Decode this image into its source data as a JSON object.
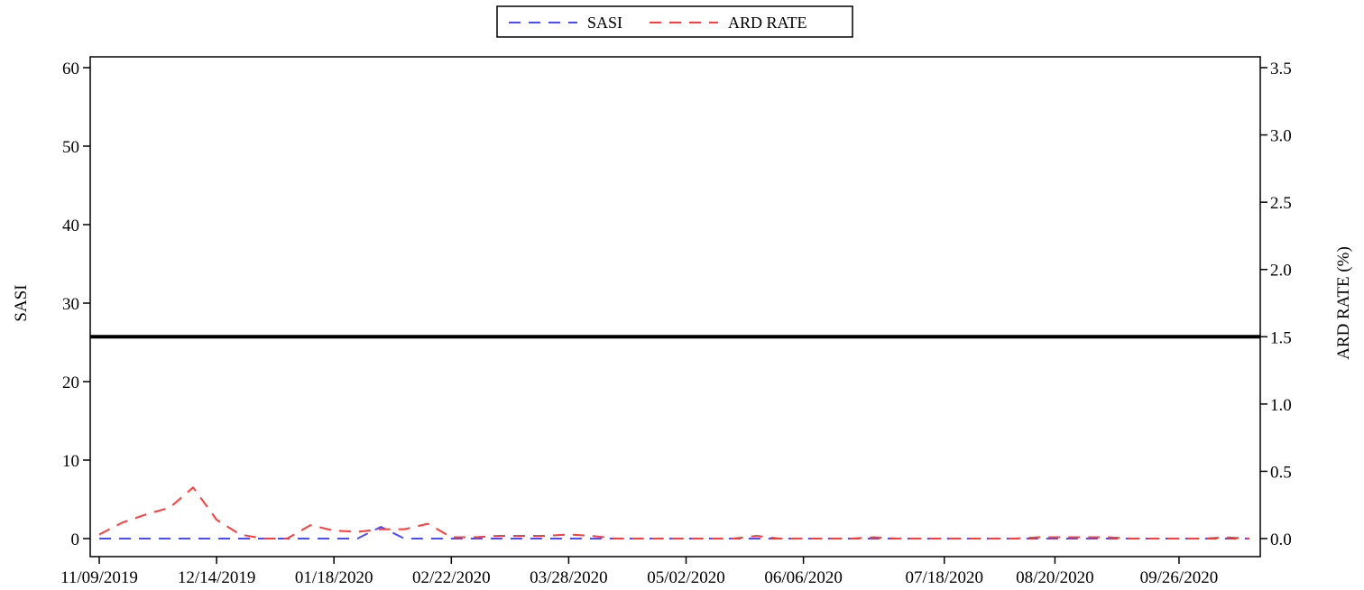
{
  "chart_data": {
    "type": "line",
    "legend": {
      "placement": "top-center",
      "entries": [
        "SASI",
        "ARD RATE"
      ]
    },
    "grid": false,
    "x_tick_labels": [
      "11/09/2019",
      "12/14/2019",
      "01/18/2020",
      "02/22/2020",
      "03/28/2020",
      "05/02/2020",
      "06/06/2020",
      "07/18/2020",
      "08/20/2020",
      "09/26/2020"
    ],
    "x_range": [
      "11/09/2019",
      "10/17/2020"
    ],
    "y_left": {
      "label": "SASI",
      "range": [
        0,
        60
      ],
      "ticks": [
        0,
        10,
        20,
        30,
        40,
        50,
        60
      ]
    },
    "y_right": {
      "label": "ARD RATE (%)",
      "range": [
        0,
        3.5
      ],
      "ticks": [
        "0.0",
        "0.5",
        "1.0",
        "1.5",
        "2.0",
        "2.5",
        "3.0",
        "3.5"
      ]
    },
    "reference_line": {
      "axis": "right",
      "value": 1.5
    },
    "series": [
      {
        "name": "SASI",
        "axis": "left",
        "color": "#4a4aff",
        "x": [
          "11/09/2019",
          "11/16/2019",
          "11/23/2019",
          "11/30/2019",
          "12/07/2019",
          "12/14/2019",
          "12/21/2019",
          "12/28/2019",
          "01/04/2020",
          "01/11/2020",
          "01/18/2020",
          "01/25/2020",
          "02/01/2020",
          "02/08/2020",
          "02/15/2020",
          "02/22/2020",
          "02/29/2020",
          "03/07/2020",
          "03/14/2020",
          "03/21/2020",
          "03/28/2020",
          "04/04/2020",
          "04/11/2020",
          "04/18/2020",
          "04/25/2020",
          "05/02/2020",
          "05/09/2020",
          "05/16/2020",
          "05/23/2020",
          "05/30/2020",
          "06/06/2020",
          "06/13/2020",
          "06/20/2020",
          "06/27/2020",
          "07/04/2020",
          "07/11/2020",
          "07/18/2020",
          "07/25/2020",
          "08/01/2020",
          "08/08/2020",
          "08/15/2020",
          "08/22/2020",
          "08/29/2020",
          "09/05/2020",
          "09/12/2020",
          "09/19/2020",
          "09/26/2020",
          "10/03/2020",
          "10/10/2020",
          "10/17/2020"
        ],
        "values": [
          0,
          0,
          0,
          0,
          0,
          0,
          0,
          0,
          0,
          0,
          0,
          0,
          1.5,
          0,
          0,
          0,
          0,
          0,
          0,
          0,
          0,
          0,
          0,
          0,
          0,
          0,
          0,
          0,
          0,
          0,
          0,
          0,
          0,
          0,
          0,
          0,
          0,
          0,
          0,
          0,
          0,
          0,
          0,
          0,
          0,
          0,
          0,
          0,
          0,
          0
        ]
      },
      {
        "name": "ARD RATE",
        "axis": "right",
        "color": "#ff3b3b",
        "x": [
          "11/09/2019",
          "11/16/2019",
          "11/23/2019",
          "11/30/2019",
          "12/07/2019",
          "12/14/2019",
          "12/21/2019",
          "12/28/2019",
          "01/04/2020",
          "01/11/2020",
          "01/18/2020",
          "01/25/2020",
          "02/01/2020",
          "02/08/2020",
          "02/15/2020",
          "02/22/2020",
          "02/29/2020",
          "03/07/2020",
          "03/14/2020",
          "03/21/2020",
          "03/28/2020",
          "04/04/2020",
          "04/11/2020",
          "04/18/2020",
          "04/25/2020",
          "05/02/2020",
          "05/09/2020",
          "05/16/2020",
          "05/23/2020",
          "05/30/2020",
          "06/06/2020",
          "06/13/2020",
          "06/20/2020",
          "06/27/2020",
          "07/04/2020",
          "07/11/2020",
          "07/18/2020",
          "07/25/2020",
          "08/01/2020",
          "08/08/2020",
          "08/15/2020",
          "08/22/2020",
          "08/29/2020",
          "09/05/2020",
          "09/12/2020",
          "09/19/2020",
          "09/26/2020",
          "10/03/2020",
          "10/10/2020",
          "10/17/2020"
        ],
        "values": [
          0.03,
          0.12,
          0.18,
          0.23,
          0.38,
          0.14,
          0.03,
          0.0,
          0.0,
          0.1,
          0.06,
          0.05,
          0.07,
          0.07,
          0.11,
          0.01,
          0.01,
          0.02,
          0.02,
          0.02,
          0.03,
          0.02,
          0.0,
          0.0,
          0.0,
          0.0,
          0.0,
          0.0,
          0.02,
          0.0,
          0.0,
          0.0,
          0.0,
          0.01,
          0.0,
          0.0,
          0.0,
          0.0,
          0.0,
          0.0,
          0.01,
          0.01,
          0.01,
          0.01,
          0.0,
          0.0,
          0.0,
          0.0,
          0.01,
          0.0
        ]
      }
    ]
  }
}
